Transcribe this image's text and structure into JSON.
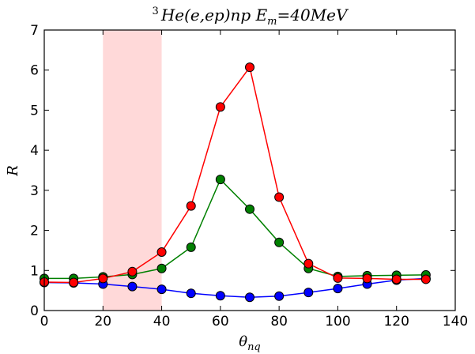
{
  "chart_data": {
    "type": "line",
    "title": {
      "superscript": "3",
      "main": "He(e,ep)np E",
      "subscript": "m",
      "tail": "=40MeV"
    },
    "xlabel": {
      "main": "θ",
      "subscript": "nq"
    },
    "ylabel": "R",
    "xlim": [
      0,
      140
    ],
    "ylim": [
      0,
      7
    ],
    "xticks": [
      "0",
      "20",
      "40",
      "60",
      "80",
      "100",
      "120",
      "140"
    ],
    "yticks": [
      "0",
      "1",
      "2",
      "3",
      "4",
      "5",
      "6",
      "7"
    ],
    "grid": false,
    "highlight_band": {
      "x": [
        20,
        40
      ],
      "color": "#ffd9d9"
    },
    "series": [
      {
        "color": "#0000ff",
        "x": [
          0,
          10,
          20,
          30,
          40,
          50,
          60,
          70,
          80,
          90,
          100,
          110,
          120,
          130
        ],
        "y": [
          0.7,
          0.69,
          0.66,
          0.6,
          0.53,
          0.43,
          0.37,
          0.33,
          0.36,
          0.45,
          0.55,
          0.66,
          0.76,
          0.8
        ]
      },
      {
        "color": "#008000",
        "x": [
          0,
          10,
          20,
          30,
          40,
          50,
          60,
          70,
          80,
          90,
          100,
          110,
          120,
          130
        ],
        "y": [
          0.8,
          0.8,
          0.84,
          0.9,
          1.05,
          1.58,
          3.27,
          2.53,
          1.7,
          1.05,
          0.85,
          0.87,
          0.88,
          0.89
        ]
      },
      {
        "color": "#ff0000",
        "x": [
          0,
          10,
          20,
          30,
          40,
          50,
          60,
          70,
          80,
          90,
          100,
          110,
          120,
          130
        ],
        "y": [
          0.71,
          0.7,
          0.8,
          0.97,
          1.46,
          2.61,
          5.08,
          6.07,
          2.83,
          1.17,
          0.81,
          0.8,
          0.78,
          0.78
        ]
      }
    ]
  }
}
